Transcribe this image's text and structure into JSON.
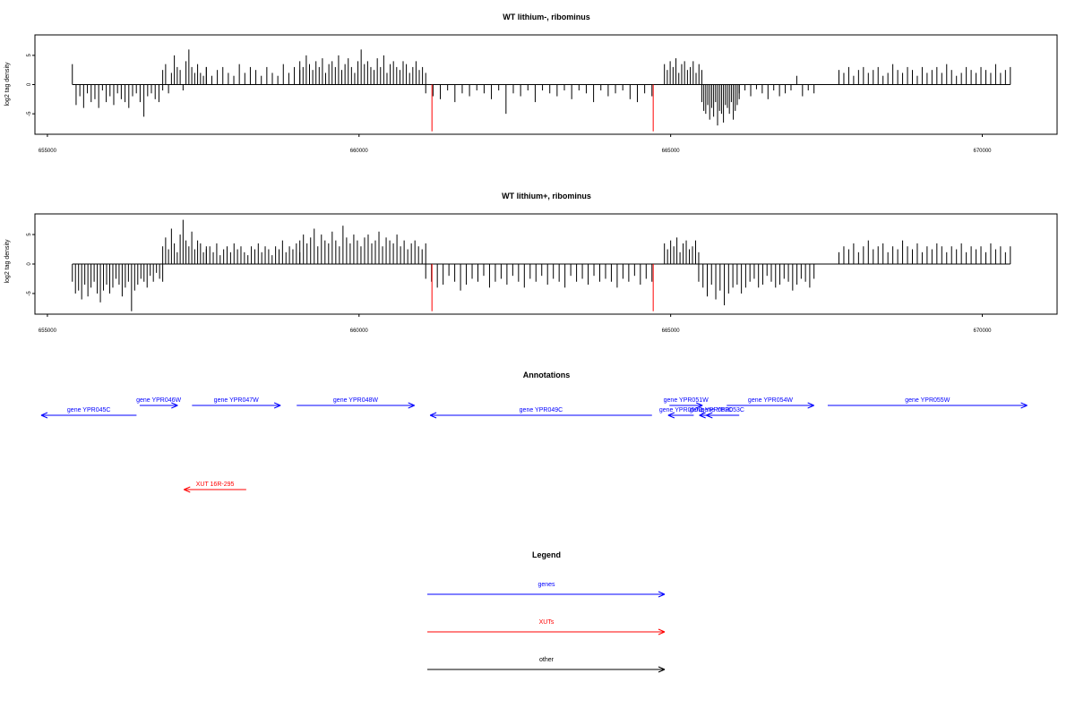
{
  "chart_data": [
    {
      "type": "bar",
      "title": "WT lithium-, ribominus",
      "ylabel": "log2 tag density",
      "xlim": [
        654800,
        671200
      ],
      "ylim": [
        -8.5,
        8.5
      ],
      "x_ticks": [
        655000,
        660000,
        665000,
        670000
      ],
      "y_ticks": [
        5,
        0,
        -5
      ],
      "grid": false,
      "markers": [
        661170,
        664720
      ],
      "marker_color": "#ff0000",
      "bar_color": "#000000",
      "regions": [
        {
          "from": 655400,
          "to": 656850,
          "values": [
            3.5,
            -3.5,
            -2,
            -4,
            -1.5,
            -3,
            -2.5,
            -4,
            -1,
            -3,
            -2,
            -3.5,
            -1.5,
            -2.5,
            -3,
            -4,
            -2,
            -1.5,
            -3,
            -5.5,
            -2,
            -1.5,
            -2.5,
            -3,
            -1
          ]
        },
        {
          "from": 656850,
          "to": 657550,
          "values": [
            2.5,
            3.5,
            -1.5,
            2,
            5,
            3,
            2.5,
            -1,
            4,
            6,
            3,
            2,
            3.5,
            2,
            1.5,
            3
          ]
        },
        {
          "from": 657550,
          "to": 659050,
          "values": [
            3,
            1.5,
            2.5,
            3,
            2,
            1.5,
            3.5,
            2,
            3,
            2.5,
            1.5,
            3,
            2,
            1.5,
            3.5,
            2,
            3,
            2.5
          ]
        },
        {
          "from": 659050,
          "to": 661070,
          "values": [
            4,
            3,
            5,
            3.5,
            2.5,
            4,
            3,
            4.5,
            2,
            3.5,
            4,
            3,
            5,
            2.5,
            3.5,
            4.5,
            3,
            2,
            4,
            6,
            3.5,
            4,
            3,
            2.5,
            4.5,
            3,
            5,
            2,
            3.5,
            4,
            3,
            2.5,
            4,
            3.5,
            2,
            3,
            4,
            2.5,
            3,
            2
          ]
        },
        {
          "from": 661070,
          "to": 664700,
          "values": [
            -1.5,
            -2,
            -2.5,
            -1,
            -3,
            -1.5,
            -2,
            -1,
            -1.5,
            -2.5,
            -1,
            -5,
            -1.5,
            -2,
            -1,
            -3,
            -1,
            -1.5,
            -2,
            -1,
            -2.5,
            -1,
            -1.5,
            -3,
            -1,
            -2,
            -1.5,
            -1,
            -2.5,
            -3,
            -1.5,
            -2
          ]
        },
        {
          "from": 664900,
          "to": 665500,
          "values": [
            3.5,
            2.5,
            4,
            3,
            4.5,
            2,
            3.5,
            4,
            2.5,
            3,
            4,
            2,
            3.5,
            2.5
          ]
        },
        {
          "from": 665500,
          "to": 666100,
          "values": [
            -3,
            -4.5,
            -5,
            -3.5,
            -6,
            -4,
            -5.5,
            -3,
            -7,
            -4.5,
            -5,
            -6.5,
            -3.5,
            -4,
            -5,
            -3,
            -6,
            -4.5,
            -3.5,
            -2.5
          ]
        },
        {
          "from": 666100,
          "to": 667300,
          "values": [
            -1.5,
            -1,
            -2,
            -0.8,
            -1.5,
            -2.5,
            -1,
            -2,
            -1.5,
            -1,
            1.5,
            -2,
            -1,
            -1.5
          ]
        },
        {
          "from": 667700,
          "to": 670450,
          "values": [
            2.5,
            2,
            3,
            1.5,
            2.5,
            3,
            2,
            2.5,
            3,
            1.5,
            2,
            3.5,
            2.5,
            2,
            3,
            2.5,
            1.5,
            3,
            2,
            2.5,
            3,
            2,
            3.5,
            2.5,
            1.5,
            2,
            3,
            2.5,
            2,
            3,
            2.5,
            2,
            3.5,
            2,
            2.5,
            3
          ]
        }
      ]
    },
    {
      "type": "bar",
      "title": "WT lithium+, ribominus",
      "ylabel": "log2 tag density",
      "xlim": [
        654800,
        671200
      ],
      "ylim": [
        -8.5,
        8.5
      ],
      "x_ticks": [
        655000,
        660000,
        665000,
        670000
      ],
      "y_ticks": [
        5,
        0,
        -5
      ],
      "grid": false,
      "markers": [
        661170,
        664720
      ],
      "marker_color": "#ff0000",
      "bar_color": "#000000",
      "regions": [
        {
          "from": 655400,
          "to": 656850,
          "values": [
            -3,
            -5,
            -4.5,
            -6,
            -3.5,
            -5.5,
            -4,
            -3,
            -5,
            -6.5,
            -4.5,
            -3.5,
            -5,
            -4,
            -2.5,
            -3.5,
            -5.5,
            -4,
            -3,
            -8,
            -4.5,
            -3.5,
            -2.5,
            -3,
            -4,
            -2,
            -3,
            -1.5,
            -2.5,
            -3
          ]
        },
        {
          "from": 656850,
          "to": 657550,
          "values": [
            3,
            4.5,
            2.5,
            6,
            3.5,
            2,
            5,
            7.5,
            4,
            3,
            5.5,
            2.5,
            4,
            3.5,
            2,
            3
          ]
        },
        {
          "from": 657550,
          "to": 659050,
          "values": [
            2.5,
            3,
            2,
            3.5,
            1.5,
            2.5,
            3,
            2,
            3.5,
            2.5,
            3,
            2,
            1.5,
            3,
            2.5,
            3.5,
            2,
            3,
            2.5,
            1.5,
            3,
            2.5,
            4,
            2,
            3,
            2.5,
            3.5,
            2
          ]
        },
        {
          "from": 659050,
          "to": 661070,
          "values": [
            4,
            5,
            3.5,
            4.5,
            6,
            3,
            5,
            4,
            3.5,
            5.5,
            4,
            3,
            6.5,
            4.5,
            3.5,
            5,
            4,
            3,
            4.5,
            5,
            3.5,
            4,
            5.5,
            3,
            4.5,
            4,
            3.5,
            5,
            3,
            4,
            2.5,
            3.5,
            4,
            3,
            2.5,
            3.5
          ]
        },
        {
          "from": 661070,
          "to": 664700,
          "values": [
            -2.5,
            -3,
            -4,
            -3.5,
            -2,
            -3,
            -4.5,
            -3.5,
            -2.5,
            -3,
            -2,
            -4,
            -3,
            -2.5,
            -3.5,
            -2,
            -3,
            -4,
            -2.5,
            -3,
            -2,
            -3.5,
            -2.5,
            -3,
            -4,
            -2,
            -3,
            -2.5,
            -3.5,
            -2,
            -3,
            -2.5,
            -3,
            -4,
            -2.5,
            -3,
            -2,
            -3.5,
            -2.5,
            -3
          ]
        },
        {
          "from": 664900,
          "to": 665450,
          "values": [
            3.5,
            2.5,
            4,
            3,
            4.5,
            2,
            3.5,
            4,
            2.5,
            3,
            4,
            2
          ]
        },
        {
          "from": 665450,
          "to": 667300,
          "values": [
            -3,
            -4,
            -5.5,
            -3.5,
            -6,
            -4.5,
            -7,
            -5,
            -4,
            -3.5,
            -5,
            -4,
            -3,
            -2.5,
            -4,
            -3.5,
            -2,
            -3,
            -4,
            -3.5,
            -2.5,
            -3,
            -4.5,
            -3.5,
            -2.5,
            -3,
            -4,
            -2.5
          ]
        },
        {
          "from": 667700,
          "to": 670450,
          "values": [
            2,
            3,
            2.5,
            3.5,
            2,
            3,
            4,
            2.5,
            3,
            3.5,
            2,
            3,
            2.5,
            4,
            3,
            2.5,
            3.5,
            2,
            3,
            2.5,
            3.5,
            3,
            2,
            3,
            2.5,
            3.5,
            2,
            3,
            2.5,
            3,
            2,
            3.5,
            2.5,
            3,
            2,
            3
          ]
        }
      ]
    }
  ],
  "annotations": {
    "title": "Annotations",
    "xlim": [
      654800,
      671200
    ],
    "features": [
      {
        "label": "gene YPR045C",
        "start": 656430,
        "end": 654900,
        "row": 2,
        "color": "#0000ff"
      },
      {
        "label": "gene YPR046W",
        "start": 656480,
        "end": 657090,
        "row": 1,
        "color": "#0000ff"
      },
      {
        "label": "gene YPR047W",
        "start": 657320,
        "end": 658740,
        "row": 1,
        "color": "#0000ff"
      },
      {
        "label": "gene YPR048W",
        "start": 659000,
        "end": 660890,
        "row": 1,
        "color": "#0000ff"
      },
      {
        "label": "gene YPR049C",
        "start": 664700,
        "end": 661140,
        "row": 2,
        "color": "#0000ff"
      },
      {
        "label": "gene YPR050C",
        "start": 665370,
        "end": 664960,
        "row": 2,
        "color": "#0000ff"
      },
      {
        "label": "gene YPR051W",
        "start": 664980,
        "end": 665510,
        "row": 1,
        "color": "#0000ff"
      },
      {
        "label": "gene YPR052C",
        "start": 665840,
        "end": 665460,
        "row": 2,
        "color": "#0000ff"
      },
      {
        "label": "gene YPR053C",
        "start": 666100,
        "end": 665570,
        "row": 2,
        "color": "#0000ff"
      },
      {
        "label": "gene YPR054W",
        "start": 665900,
        "end": 667300,
        "row": 1,
        "color": "#0000ff"
      },
      {
        "label": "gene YPR055W",
        "start": 667520,
        "end": 670720,
        "row": 1,
        "color": "#0000ff"
      },
      {
        "label": "XUT 16R-295",
        "start": 658190,
        "end": 657190,
        "row": 3,
        "color": "#ff0000"
      }
    ]
  },
  "legend": {
    "title": "Legend",
    "items": [
      {
        "label": "genes",
        "color": "#0000ff"
      },
      {
        "label": "XUTs",
        "color": "#ff0000"
      },
      {
        "label": "other",
        "color": "#000000"
      }
    ]
  }
}
